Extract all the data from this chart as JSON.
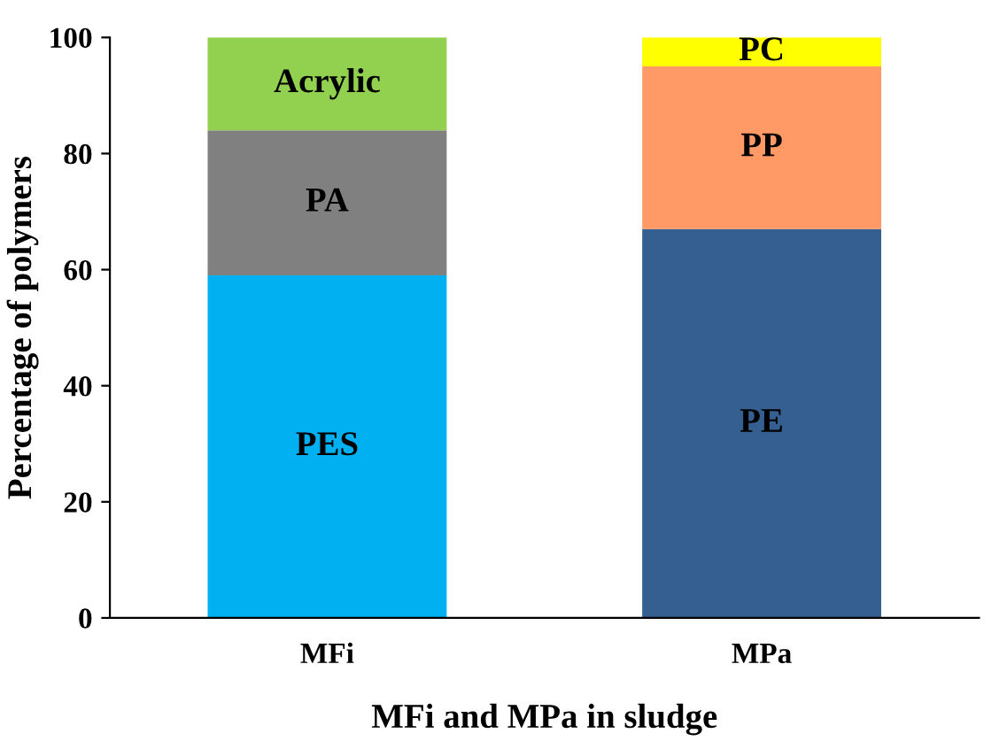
{
  "chart_data": {
    "type": "bar",
    "stacked": true,
    "xlabel": "MFi and MPa in sludge",
    "ylabel": "Percentage of polymers",
    "categories": [
      "MFi",
      "MPa"
    ],
    "series": [
      {
        "name": "PES",
        "color": "#00b0f0",
        "values": [
          59,
          null
        ]
      },
      {
        "name": "PA",
        "color": "#808080",
        "values": [
          25,
          null
        ]
      },
      {
        "name": "Acrylic",
        "color": "#92d050",
        "values": [
          16,
          null
        ]
      },
      {
        "name": "PE",
        "color": "#355f91",
        "values": [
          null,
          67
        ]
      },
      {
        "name": "PP",
        "color": "#ff9966",
        "values": [
          null,
          28
        ]
      },
      {
        "name": "PC",
        "color": "#ffff00",
        "values": [
          null,
          5
        ]
      }
    ],
    "ylim": [
      0,
      100
    ],
    "yticks": [
      0,
      20,
      40,
      60,
      80,
      100
    ],
    "grid": false,
    "legend": false
  }
}
